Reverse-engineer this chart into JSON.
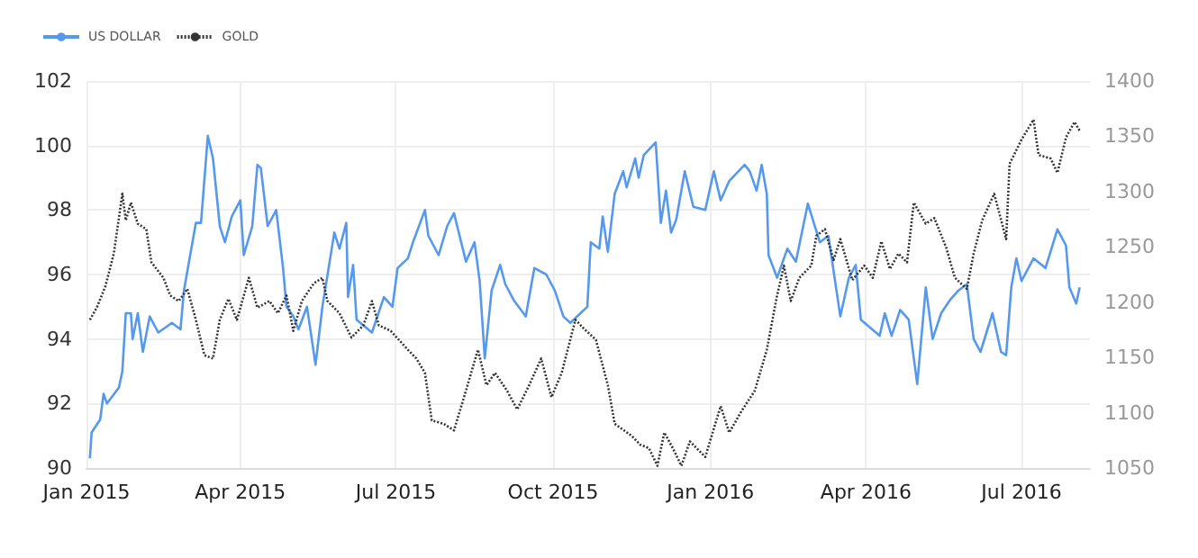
{
  "chart_data": {
    "type": "line",
    "legend": "top left",
    "grid": true,
    "marker": "none",
    "xlim": [
      "2015-01-01",
      "2016-08-10"
    ],
    "xticks": [
      {
        "value": "2015-01-01",
        "label": "Jan 2015"
      },
      {
        "value": "2015-04-01",
        "label": "Apr 2015"
      },
      {
        "value": "2015-07-01",
        "label": "Jul 2015"
      },
      {
        "value": "2015-10-01",
        "label": "Oct 2015"
      },
      {
        "value": "2016-01-01",
        "label": "Jan 2016"
      },
      {
        "value": "2016-04-01",
        "label": "Apr 2016"
      },
      {
        "value": "2016-07-01",
        "label": "Jul 2016"
      }
    ],
    "ylim": [
      90,
      102
    ],
    "yticks": [
      90,
      92,
      94,
      96,
      98,
      100,
      102
    ],
    "y2lim": [
      1050,
      1400
    ],
    "y2ticks": [
      1050,
      1100,
      1150,
      1200,
      1250,
      1300,
      1350,
      1400
    ],
    "series": [
      {
        "name": "US DOLLAR",
        "color": "#5599ee",
        "line_style": "solid",
        "x": [
          "2015-01-03",
          "2015-01-04",
          "2015-01-09",
          "2015-01-11",
          "2015-01-13",
          "2015-01-20",
          "2015-01-22",
          "2015-01-24",
          "2015-01-27",
          "2015-01-28",
          "2015-01-31",
          "2015-02-03",
          "2015-02-07",
          "2015-02-12",
          "2015-02-20",
          "2015-02-25",
          "2015-02-27",
          "2015-03-06",
          "2015-03-09",
          "2015-03-13",
          "2015-03-16",
          "2015-03-20",
          "2015-03-23",
          "2015-03-27",
          "2015-04-01",
          "2015-04-03",
          "2015-04-08",
          "2015-04-11",
          "2015-04-13",
          "2015-04-17",
          "2015-04-22",
          "2015-04-26",
          "2015-04-28",
          "2015-05-02",
          "2015-05-05",
          "2015-05-10",
          "2015-05-15",
          "2015-05-19",
          "2015-05-26",
          "2015-05-29",
          "2015-06-02",
          "2015-06-03",
          "2015-06-06",
          "2015-06-08",
          "2015-06-17",
          "2015-06-24",
          "2015-06-29",
          "2015-07-02",
          "2015-07-08",
          "2015-07-11",
          "2015-07-18",
          "2015-07-20",
          "2015-07-26",
          "2015-07-31",
          "2015-08-04",
          "2015-08-11",
          "2015-08-16",
          "2015-08-19",
          "2015-08-22",
          "2015-08-26",
          "2015-08-31",
          "2015-09-03",
          "2015-09-08",
          "2015-09-15",
          "2015-09-20",
          "2015-09-27",
          "2015-10-02",
          "2015-10-07",
          "2015-10-11",
          "2015-10-21",
          "2015-10-23",
          "2015-10-28",
          "2015-10-30",
          "2015-11-02",
          "2015-11-06",
          "2015-11-11",
          "2015-11-13",
          "2015-11-18",
          "2015-11-20",
          "2015-11-23",
          "2015-11-30",
          "2015-12-03",
          "2015-12-06",
          "2015-12-09",
          "2015-12-12",
          "2015-12-17",
          "2015-12-22",
          "2015-12-29",
          "2016-01-03",
          "2016-01-07",
          "2016-01-12",
          "2016-01-21",
          "2016-01-24",
          "2016-01-28",
          "2016-01-31",
          "2016-02-03",
          "2016-02-04",
          "2016-02-09",
          "2016-02-15",
          "2016-02-20",
          "2016-02-27",
          "2016-03-05",
          "2016-03-10",
          "2016-03-17",
          "2016-03-22",
          "2016-03-26",
          "2016-03-29",
          "2016-04-09",
          "2016-04-12",
          "2016-04-16",
          "2016-04-21",
          "2016-04-26",
          "2016-05-01",
          "2016-05-06",
          "2016-05-10",
          "2016-05-15",
          "2016-05-20",
          "2016-05-25",
          "2016-05-30",
          "2016-06-03",
          "2016-06-07",
          "2016-06-14",
          "2016-06-19",
          "2016-06-22",
          "2016-06-25",
          "2016-06-28",
          "2016-07-01",
          "2016-07-08",
          "2016-07-15",
          "2016-07-22",
          "2016-07-27",
          "2016-07-29",
          "2016-08-02",
          "2016-08-04"
        ],
        "values": [
          90.3,
          91.1,
          91.5,
          92.3,
          92.0,
          92.5,
          93.0,
          94.8,
          94.8,
          94.0,
          94.8,
          93.6,
          94.7,
          94.2,
          94.5,
          94.3,
          95.5,
          97.6,
          97.6,
          100.3,
          99.6,
          97.5,
          97.0,
          97.8,
          98.3,
          96.6,
          97.5,
          99.4,
          99.3,
          97.5,
          98.0,
          96.2,
          95.0,
          94.7,
          94.3,
          95.0,
          93.2,
          95.0,
          97.3,
          96.8,
          97.6,
          95.3,
          96.3,
          94.6,
          94.2,
          95.3,
          95.0,
          96.2,
          96.5,
          97.0,
          98.0,
          97.2,
          96.6,
          97.5,
          97.9,
          96.4,
          97.0,
          95.8,
          93.4,
          95.5,
          96.3,
          95.7,
          95.2,
          94.7,
          96.2,
          96.0,
          95.5,
          94.7,
          94.5,
          95.0,
          97.0,
          96.8,
          97.8,
          96.7,
          98.5,
          99.2,
          98.7,
          99.6,
          99.0,
          99.7,
          100.1,
          97.6,
          98.6,
          97.3,
          97.7,
          99.2,
          98.1,
          98.0,
          99.2,
          98.3,
          98.9,
          99.4,
          99.2,
          98.6,
          99.4,
          98.5,
          96.6,
          95.9,
          96.8,
          96.4,
          98.2,
          97.0,
          97.2,
          94.7,
          95.9,
          96.3,
          94.6,
          94.1,
          94.8,
          94.1,
          94.9,
          94.6,
          92.6,
          95.6,
          94.0,
          94.8,
          95.2,
          95.5,
          95.7,
          94.0,
          93.6,
          94.8,
          93.6,
          93.5,
          95.6,
          96.5,
          95.8,
          96.5,
          96.2,
          97.4,
          96.9,
          95.6,
          95.1,
          95.6
        ]
      },
      {
        "name": "GOLD",
        "color": "#333333",
        "line_style": "dotted",
        "axis": "y2",
        "x": [
          "2015-01-03",
          "2015-01-07",
          "2015-01-12",
          "2015-01-17",
          "2015-01-22",
          "2015-01-24",
          "2015-01-27",
          "2015-01-31",
          "2015-02-05",
          "2015-02-08",
          "2015-02-12",
          "2015-02-15",
          "2015-02-19",
          "2015-02-24",
          "2015-03-01",
          "2015-03-06",
          "2015-03-11",
          "2015-03-16",
          "2015-03-20",
          "2015-03-25",
          "2015-03-30",
          "2015-04-06",
          "2015-04-11",
          "2015-04-18",
          "2015-04-23",
          "2015-04-28",
          "2015-05-02",
          "2015-05-07",
          "2015-05-14",
          "2015-05-19",
          "2015-05-22",
          "2015-05-29",
          "2015-06-05",
          "2015-06-12",
          "2015-06-17",
          "2015-06-21",
          "2015-06-28",
          "2015-07-08",
          "2015-07-13",
          "2015-07-18",
          "2015-07-22",
          "2015-07-29",
          "2015-08-04",
          "2015-08-11",
          "2015-08-18",
          "2015-08-23",
          "2015-08-28",
          "2015-09-04",
          "2015-09-10",
          "2015-09-17",
          "2015-09-24",
          "2015-09-30",
          "2015-10-06",
          "2015-10-14",
          "2015-10-19",
          "2015-10-26",
          "2015-11-02",
          "2015-11-06",
          "2015-11-16",
          "2015-11-21",
          "2015-11-26",
          "2015-12-01",
          "2015-12-05",
          "2015-12-10",
          "2015-12-15",
          "2015-12-20",
          "2015-12-29",
          "2016-01-07",
          "2016-01-12",
          "2016-01-19",
          "2016-01-27",
          "2016-02-03",
          "2016-02-09",
          "2016-02-13",
          "2016-02-17",
          "2016-02-22",
          "2016-02-29",
          "2016-03-03",
          "2016-03-08",
          "2016-03-13",
          "2016-03-17",
          "2016-03-24",
          "2016-03-31",
          "2016-04-05",
          "2016-04-10",
          "2016-04-15",
          "2016-04-20",
          "2016-04-25",
          "2016-04-29",
          "2016-05-06",
          "2016-05-11",
          "2016-05-18",
          "2016-05-23",
          "2016-05-30",
          "2016-06-03",
          "2016-06-08",
          "2016-06-15",
          "2016-06-22",
          "2016-06-24",
          "2016-07-01",
          "2016-07-08",
          "2016-07-11",
          "2016-07-18",
          "2016-07-22",
          "2016-07-27",
          "2016-08-01",
          "2016-08-04"
        ],
        "values": [
          1184,
          1195,
          1214,
          1244,
          1298,
          1274,
          1290,
          1271,
          1266,
          1236,
          1228,
          1222,
          1206,
          1201,
          1212,
          1184,
          1152,
          1149,
          1184,
          1203,
          1184,
          1222,
          1195,
          1201,
          1190,
          1206,
          1174,
          1201,
          1217,
          1222,
          1201,
          1190,
          1168,
          1179,
          1201,
          1179,
          1174,
          1157,
          1149,
          1136,
          1093,
          1090,
          1084,
          1120,
          1157,
          1125,
          1136,
          1120,
          1103,
          1125,
          1149,
          1114,
          1136,
          1184,
          1176,
          1166,
          1125,
          1090,
          1079,
          1071,
          1068,
          1052,
          1082,
          1068,
          1052,
          1074,
          1060,
          1106,
          1082,
          1101,
          1120,
          1157,
          1206,
          1233,
          1201,
          1222,
          1233,
          1260,
          1266,
          1238,
          1257,
          1220,
          1233,
          1222,
          1255,
          1230,
          1244,
          1236,
          1290,
          1271,
          1276,
          1249,
          1222,
          1212,
          1244,
          1274,
          1298,
          1257,
          1325,
          1347,
          1365,
          1333,
          1330,
          1317,
          1349,
          1363,
          1355
        ]
      }
    ]
  }
}
